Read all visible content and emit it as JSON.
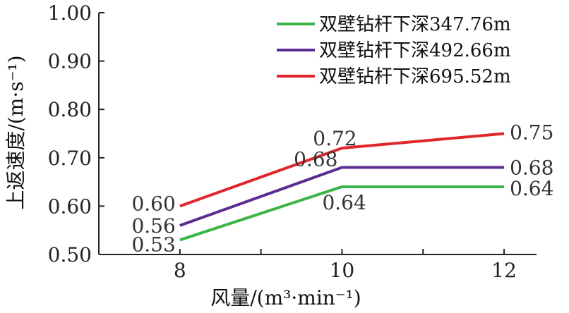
{
  "chart_data": {
    "type": "line",
    "title": "",
    "xlabel": "风量/(m³·min⁻¹)",
    "ylabel": "上返速度/(m·s⁻¹)",
    "x": [
      8,
      10,
      12
    ],
    "x_tick_labels": [
      "8",
      "10",
      "12"
    ],
    "xlim": [
      7,
      12.4
    ],
    "ylim": [
      0.5,
      1.0
    ],
    "y_tick_labels": [
      "0.50",
      "0.60",
      "0.70",
      "0.80",
      "0.90",
      "1.00"
    ],
    "y_ticks": [
      0.5,
      0.6,
      0.7,
      0.8,
      0.9,
      1.0
    ],
    "grid": false,
    "legend_position": "top-right",
    "series": [
      {
        "name": "双壁钻杆下深347.76m",
        "color": "#3bb54a",
        "values": [
          0.53,
          0.64,
          0.64
        ],
        "labels": [
          "0.53",
          "0.64",
          "0.64"
        ]
      },
      {
        "name": "双壁钻杆下深492.66m",
        "color": "#5b2d90",
        "values": [
          0.56,
          0.68,
          0.68
        ],
        "labels": [
          "0.56",
          "0.68",
          "0.68"
        ]
      },
      {
        "name": "双壁钻杆下深695.52m",
        "color": "#e0262b",
        "values": [
          0.6,
          0.72,
          0.75
        ],
        "labels": [
          "0.60",
          "0.72",
          "0.75"
        ]
      }
    ]
  }
}
